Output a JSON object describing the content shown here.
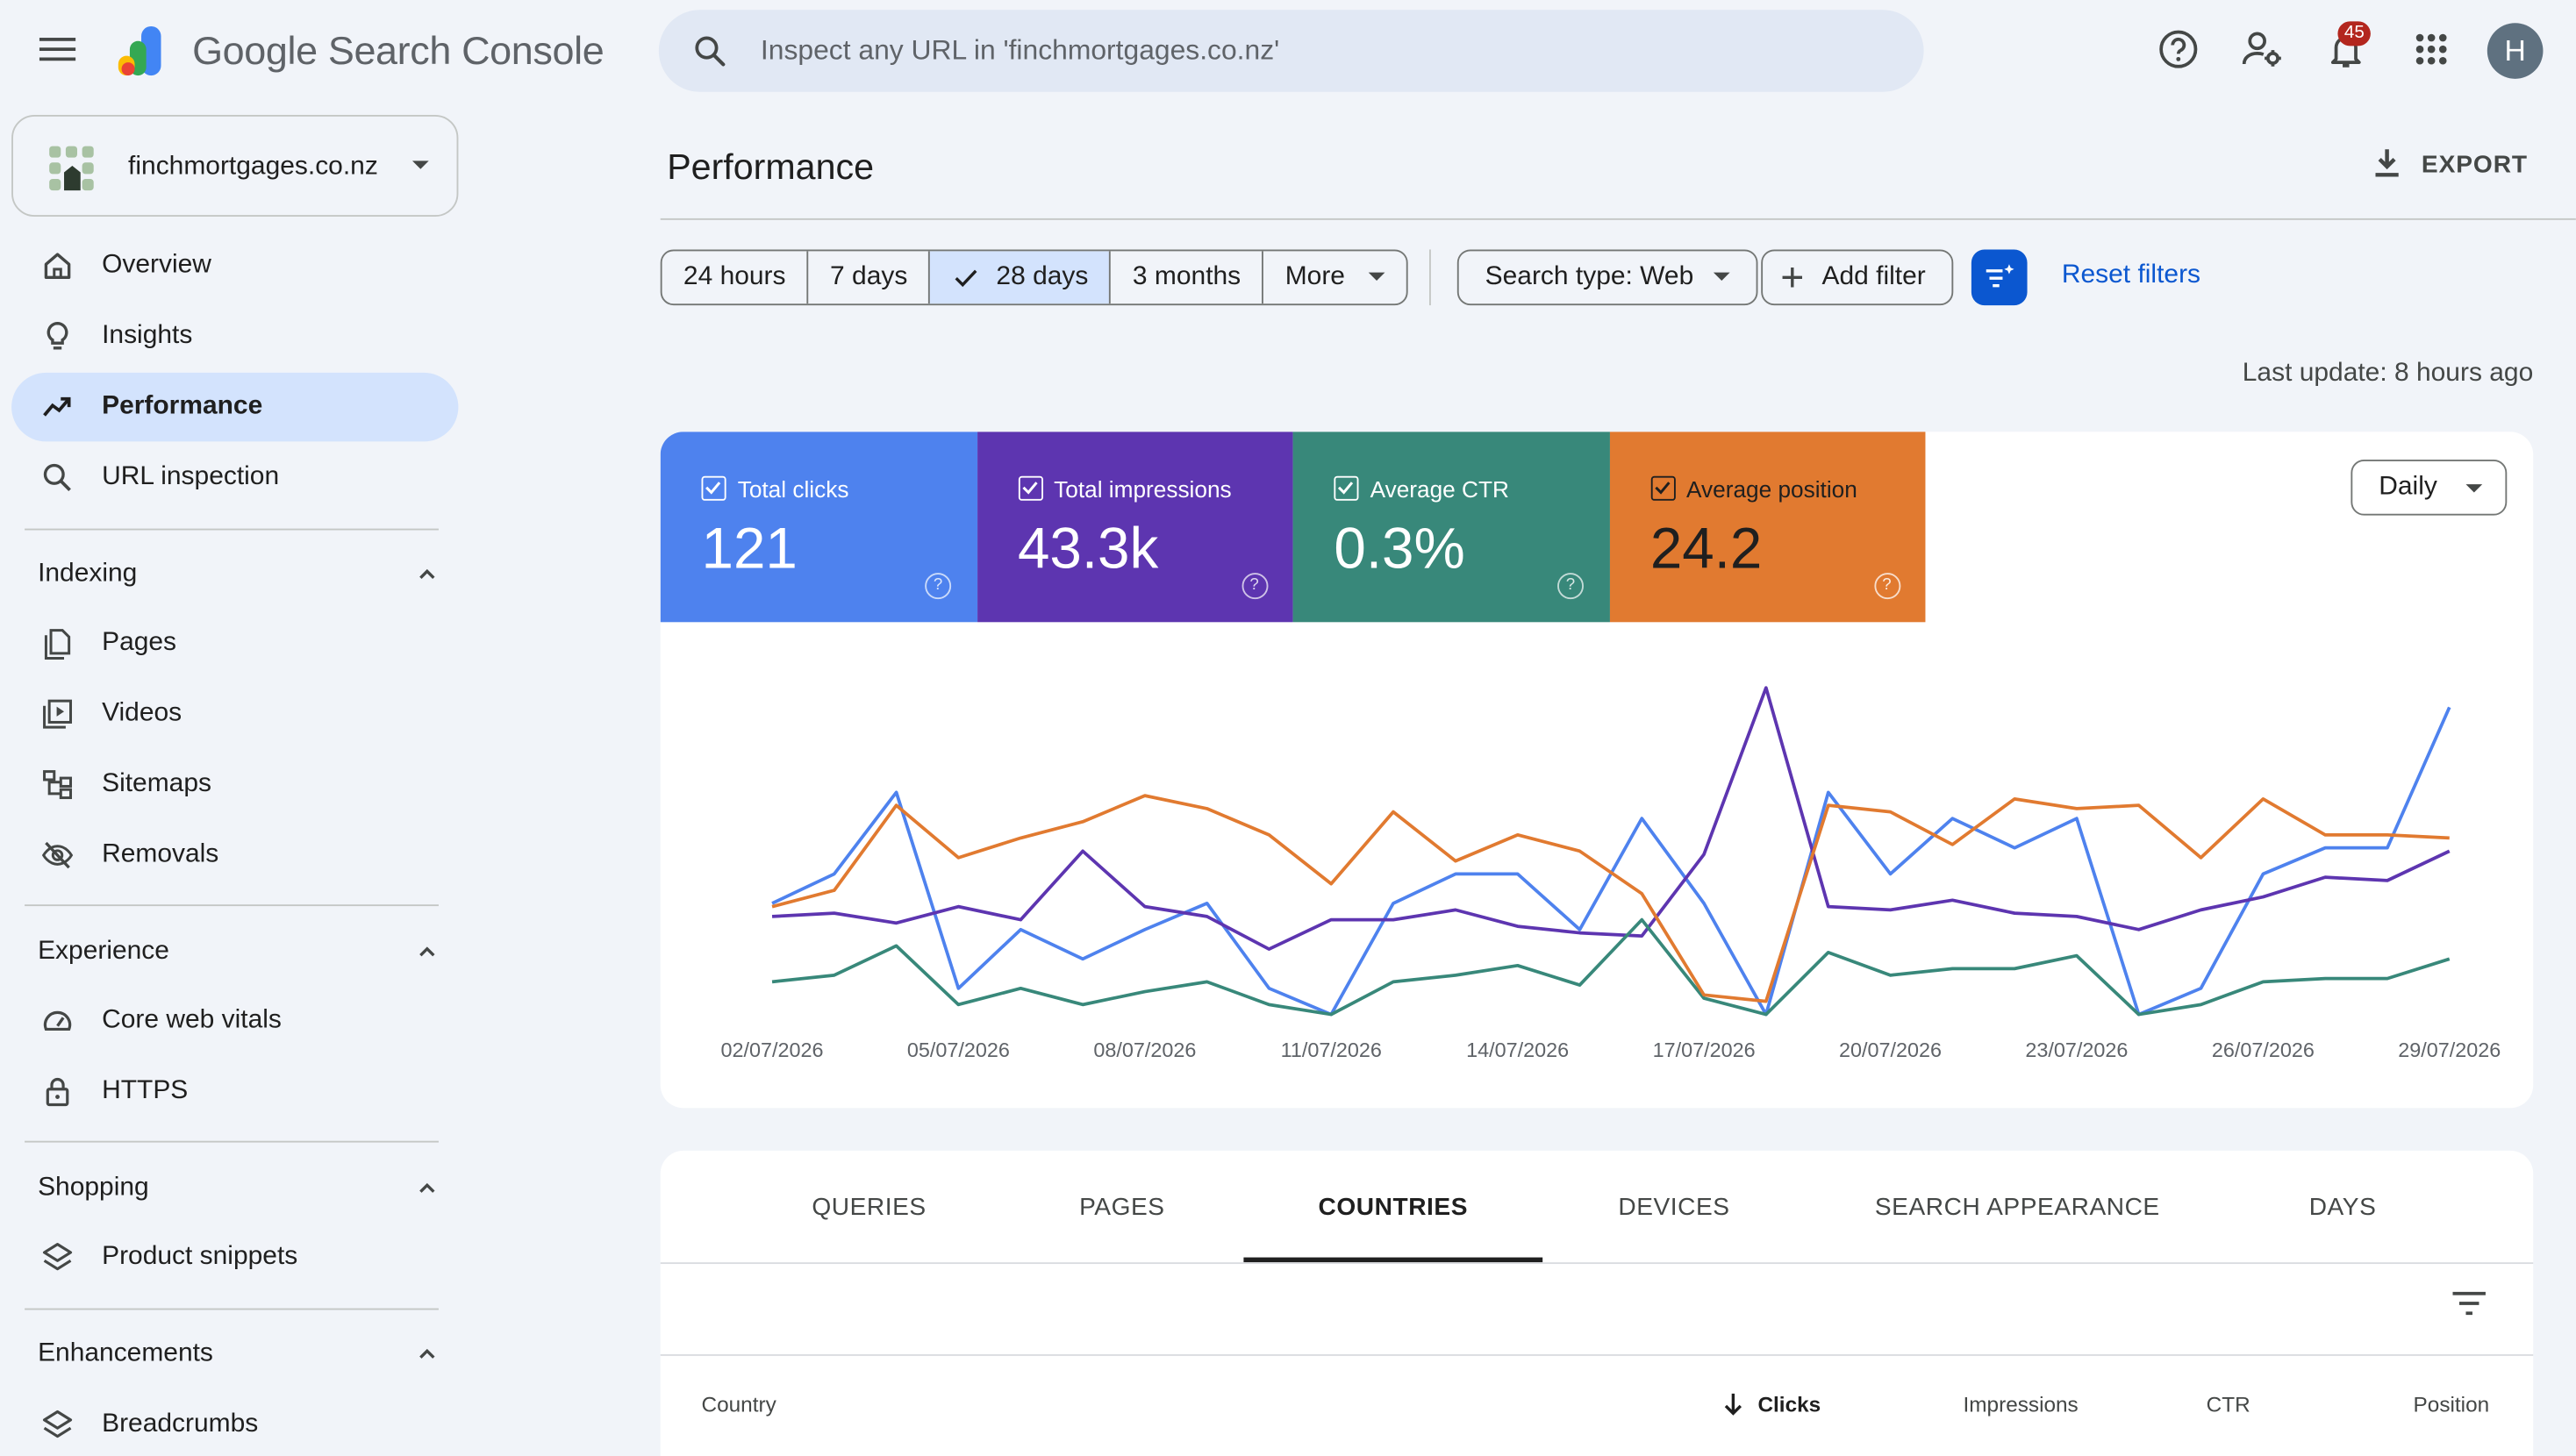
{
  "app": {
    "brand": "Google Search Console",
    "search_placeholder": "Inspect any URL in 'finchmortgages.co.nz'",
    "notifications_count": "45",
    "avatar_initial": "H"
  },
  "sidebar": {
    "property": "finchmortgages.co.nz",
    "top_items": [
      {
        "label": "Overview",
        "icon": "home-icon"
      },
      {
        "label": "Insights",
        "icon": "lightbulb-icon"
      },
      {
        "label": "Performance",
        "icon": "trending-up-icon",
        "active": true
      },
      {
        "label": "URL inspection",
        "icon": "search-icon"
      }
    ],
    "sections": {
      "indexing": {
        "title": "Indexing",
        "items": [
          "Pages",
          "Videos",
          "Sitemaps",
          "Removals"
        ]
      },
      "experience": {
        "title": "Experience",
        "items": [
          "Core web vitals",
          "HTTPS"
        ]
      },
      "shopping": {
        "title": "Shopping",
        "items": [
          "Product snippets"
        ]
      },
      "enhancements": {
        "title": "Enhancements",
        "items": [
          "Breadcrumbs"
        ]
      }
    }
  },
  "header": {
    "title": "Performance",
    "export_label": "EXPORT"
  },
  "filters": {
    "ranges": [
      "24 hours",
      "7 days",
      "28 days",
      "3 months",
      "More"
    ],
    "selected_range": "28 days",
    "search_type": "Search type: Web",
    "add_filter": "Add filter",
    "reset": "Reset filters",
    "last_update": "Last update: 8 hours ago"
  },
  "metrics": [
    {
      "label": "Total clicks",
      "value": "121",
      "color": "#4e82ee"
    },
    {
      "label": "Total impressions",
      "value": "43.3k",
      "color": "#5d35b0"
    },
    {
      "label": "Average CTR",
      "value": "0.3%",
      "color": "#38887a"
    },
    {
      "label": "Average position",
      "value": "24.2",
      "color": "#e17a30"
    }
  ],
  "granularity": "Daily",
  "chart_data": {
    "type": "line",
    "x": [
      "02/07/2026",
      "03/07/2026",
      "04/07/2026",
      "05/07/2026",
      "06/07/2026",
      "07/07/2026",
      "08/07/2026",
      "09/07/2026",
      "10/07/2026",
      "11/07/2026",
      "12/07/2026",
      "13/07/2026",
      "14/07/2026",
      "15/07/2026",
      "16/07/2026",
      "17/07/2026",
      "18/07/2026",
      "19/07/2026",
      "20/07/2026",
      "21/07/2026",
      "22/07/2026",
      "23/07/2026",
      "24/07/2026",
      "25/07/2026",
      "26/07/2026",
      "27/07/2026",
      "28/07/2026",
      "29/07/2026"
    ],
    "xticks": [
      "02/07/2026",
      "05/07/2026",
      "08/07/2026",
      "11/07/2026",
      "14/07/2026",
      "17/07/2026",
      "20/07/2026",
      "23/07/2026",
      "26/07/2026",
      "29/07/2026"
    ],
    "ylim": [
      0,
      1
    ],
    "series": [
      {
        "color": "#4e82ee",
        "values": [
          0.34,
          0.43,
          0.68,
          0.08,
          0.26,
          0.17,
          0.26,
          0.34,
          0.08,
          0.0,
          0.34,
          0.43,
          0.43,
          0.26,
          0.6,
          0.34,
          0.0,
          0.68,
          0.43,
          0.6,
          0.51,
          0.6,
          0.0,
          0.08,
          0.43,
          0.51,
          0.51,
          0.94
        ]
      },
      {
        "color": "#5d35b0",
        "values": [
          0.3,
          0.31,
          0.28,
          0.33,
          0.29,
          0.5,
          0.33,
          0.3,
          0.2,
          0.29,
          0.29,
          0.32,
          0.27,
          0.25,
          0.24,
          0.49,
          1.0,
          0.33,
          0.32,
          0.35,
          0.31,
          0.3,
          0.26,
          0.32,
          0.36,
          0.42,
          0.41,
          0.5
        ]
      },
      {
        "color": "#38887a",
        "values": [
          0.1,
          0.12,
          0.21,
          0.03,
          0.08,
          0.03,
          0.07,
          0.1,
          0.03,
          0.0,
          0.1,
          0.12,
          0.15,
          0.09,
          0.29,
          0.05,
          0.0,
          0.19,
          0.12,
          0.14,
          0.14,
          0.18,
          0.0,
          0.03,
          0.1,
          0.11,
          0.11,
          0.17
        ]
      },
      {
        "color": "#e17a30",
        "values": [
          0.33,
          0.38,
          0.64,
          0.48,
          0.54,
          0.59,
          0.67,
          0.63,
          0.55,
          0.4,
          0.62,
          0.47,
          0.55,
          0.5,
          0.37,
          0.06,
          0.04,
          0.64,
          0.62,
          0.52,
          0.66,
          0.63,
          0.64,
          0.48,
          0.66,
          0.55,
          0.55,
          0.54
        ]
      }
    ]
  },
  "table": {
    "tabs": [
      "QUERIES",
      "PAGES",
      "COUNTRIES",
      "DEVICES",
      "SEARCH APPEARANCE",
      "DAYS"
    ],
    "selected_tab": "COUNTRIES",
    "columns": [
      "Country",
      "Clicks",
      "Impressions",
      "CTR",
      "Position"
    ],
    "sorted_column": "Clicks"
  }
}
